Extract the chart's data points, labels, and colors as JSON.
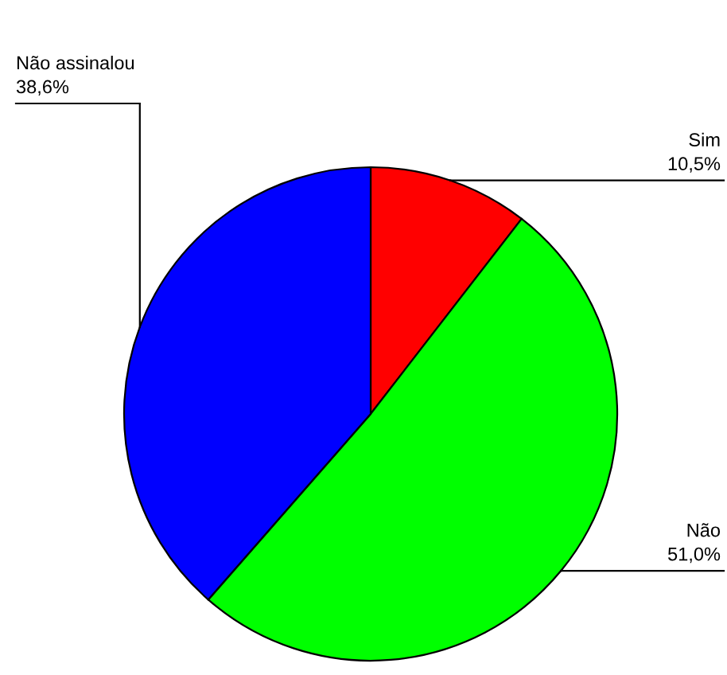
{
  "chart_data": {
    "type": "pie",
    "categories": [
      "Sim",
      "Não",
      "Não assinalou"
    ],
    "values": [
      10.5,
      51.0,
      38.6
    ],
    "colors": [
      "#ff0000",
      "#00ff00",
      "#0000ff"
    ],
    "value_labels": [
      "10,5%",
      "51,0%",
      "38,6%"
    ],
    "legend": false
  }
}
